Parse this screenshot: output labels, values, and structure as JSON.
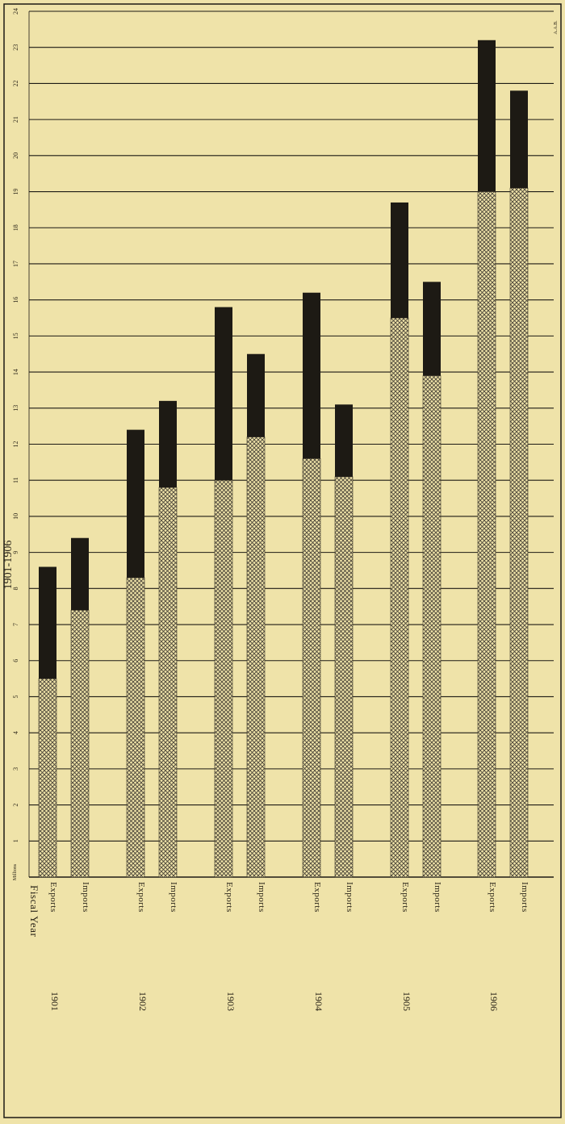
{
  "chart_data": {
    "type": "bar",
    "title": "1901-1906",
    "xlabel": "Fiscal Year",
    "ylabel": "Millions",
    "ylim": [
      0,
      24
    ],
    "grid": true,
    "years": [
      "1901",
      "1902",
      "1903",
      "1904",
      "1905",
      "1906"
    ],
    "bar_labels": [
      "Exports",
      "Imports"
    ],
    "ticks": [
      "1",
      "2",
      "3",
      "4",
      "5",
      "6",
      "7",
      "8",
      "9",
      "10",
      "11",
      "12",
      "13",
      "14",
      "15",
      "16",
      "17",
      "18",
      "19",
      "20",
      "21",
      "22",
      "23",
      "24"
    ],
    "corner_mark": "A.A.B.",
    "series": [
      {
        "name": "Exports",
        "totals": [
          8.6,
          12.4,
          15.8,
          16.2,
          18.7,
          23.2
        ],
        "hatched_portion": [
          5.5,
          8.3,
          11.0,
          11.6,
          15.5,
          19.0
        ]
      },
      {
        "name": "Imports",
        "totals": [
          9.4,
          13.2,
          14.5,
          13.1,
          16.5,
          21.8
        ],
        "hatched_portion": [
          7.4,
          10.8,
          12.2,
          11.1,
          13.9,
          19.1
        ]
      }
    ]
  },
  "colors": {
    "paper": "#efe3a9",
    "ink": "#1d1a14",
    "hatch": "#4a4438"
  }
}
